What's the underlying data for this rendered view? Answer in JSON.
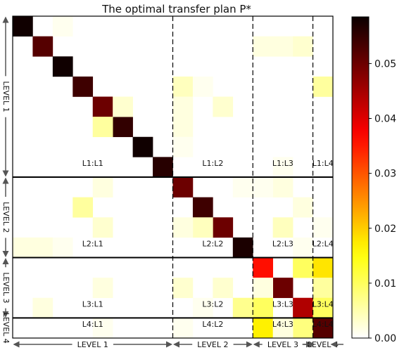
{
  "chart_data": {
    "type": "heatmap",
    "title": "The optimal transfer plan P*",
    "n": 16,
    "levels": [
      {
        "label": "LEVEL 1",
        "size": 8
      },
      {
        "label": "LEVEL 2",
        "size": 4
      },
      {
        "label": "LEVEL 3",
        "size": 3
      },
      {
        "label": "LEVEL 4",
        "size": 1
      }
    ],
    "block_labels": [
      [
        "L1:L1",
        "L1:L2",
        "L1:L3",
        "L1:L4"
      ],
      [
        "L2:L1",
        "L2:L2",
        "L2:L3",
        "L2:L4"
      ],
      [
        "L3:L1",
        "L3:L2",
        "L3:L3",
        "L3:L4"
      ],
      [
        "L4:L1",
        "L4:L2",
        "L4:L3",
        "L4:L4"
      ]
    ],
    "colorbar": {
      "min": 0.0,
      "max": 0.0585,
      "ticks": [
        "0.00",
        "0.01",
        "0.02",
        "0.03",
        "0.04",
        "0.05"
      ],
      "colormap": "hot_r"
    },
    "cells": [
      [
        0,
        0,
        0.058
      ],
      [
        1,
        1,
        0.052
      ],
      [
        2,
        2,
        0.058
      ],
      [
        3,
        3,
        0.054
      ],
      [
        4,
        4,
        0.05
      ],
      [
        5,
        5,
        0.055
      ],
      [
        6,
        6,
        0.058
      ],
      [
        7,
        7,
        0.056
      ],
      [
        8,
        8,
        0.05
      ],
      [
        9,
        9,
        0.054
      ],
      [
        10,
        10,
        0.05
      ],
      [
        11,
        11,
        0.057
      ],
      [
        12,
        12,
        0.036
      ],
      [
        13,
        13,
        0.05
      ],
      [
        14,
        14,
        0.044
      ],
      [
        15,
        15,
        0.052
      ],
      [
        0,
        2,
        0.001
      ],
      [
        4,
        5,
        0.003
      ],
      [
        5,
        4,
        0.006
      ],
      [
        3,
        8,
        0.004
      ],
      [
        4,
        8,
        0.002
      ],
      [
        4,
        10,
        0.003
      ],
      [
        5,
        8,
        0.002
      ],
      [
        6,
        8,
        0.001
      ],
      [
        3,
        9,
        0.001
      ],
      [
        1,
        12,
        0.002
      ],
      [
        1,
        13,
        0.002
      ],
      [
        1,
        14,
        0.003
      ],
      [
        3,
        15,
        0.006
      ],
      [
        7,
        13,
        0.001
      ],
      [
        9,
        3,
        0.006
      ],
      [
        10,
        4,
        0.003
      ],
      [
        8,
        4,
        0.002
      ],
      [
        11,
        0,
        0.002
      ],
      [
        11,
        1,
        0.002
      ],
      [
        11,
        2,
        0.001
      ],
      [
        10,
        9,
        0.004
      ],
      [
        8,
        11,
        0.001
      ],
      [
        10,
        8,
        0.002
      ],
      [
        8,
        13,
        0.002
      ],
      [
        10,
        13,
        0.004
      ],
      [
        11,
        14,
        0.001
      ],
      [
        9,
        14,
        0.002
      ],
      [
        10,
        15,
        0.001
      ],
      [
        8,
        12,
        0.001
      ],
      [
        12,
        14,
        0.01
      ],
      [
        12,
        15,
        0.018
      ],
      [
        13,
        12,
        0.002
      ],
      [
        13,
        15,
        0.006
      ],
      [
        14,
        12,
        0.01
      ],
      [
        14,
        15,
        0.01
      ],
      [
        13,
        4,
        0.002
      ],
      [
        13,
        8,
        0.003
      ],
      [
        13,
        10,
        0.003
      ],
      [
        14,
        1,
        0.002
      ],
      [
        14,
        9,
        0.001
      ],
      [
        14,
        11,
        0.007
      ],
      [
        15,
        12,
        0.017
      ],
      [
        15,
        14,
        0.008
      ],
      [
        15,
        13,
        0.002
      ],
      [
        15,
        8,
        0.001
      ],
      [
        15,
        4,
        0.001
      ]
    ]
  }
}
